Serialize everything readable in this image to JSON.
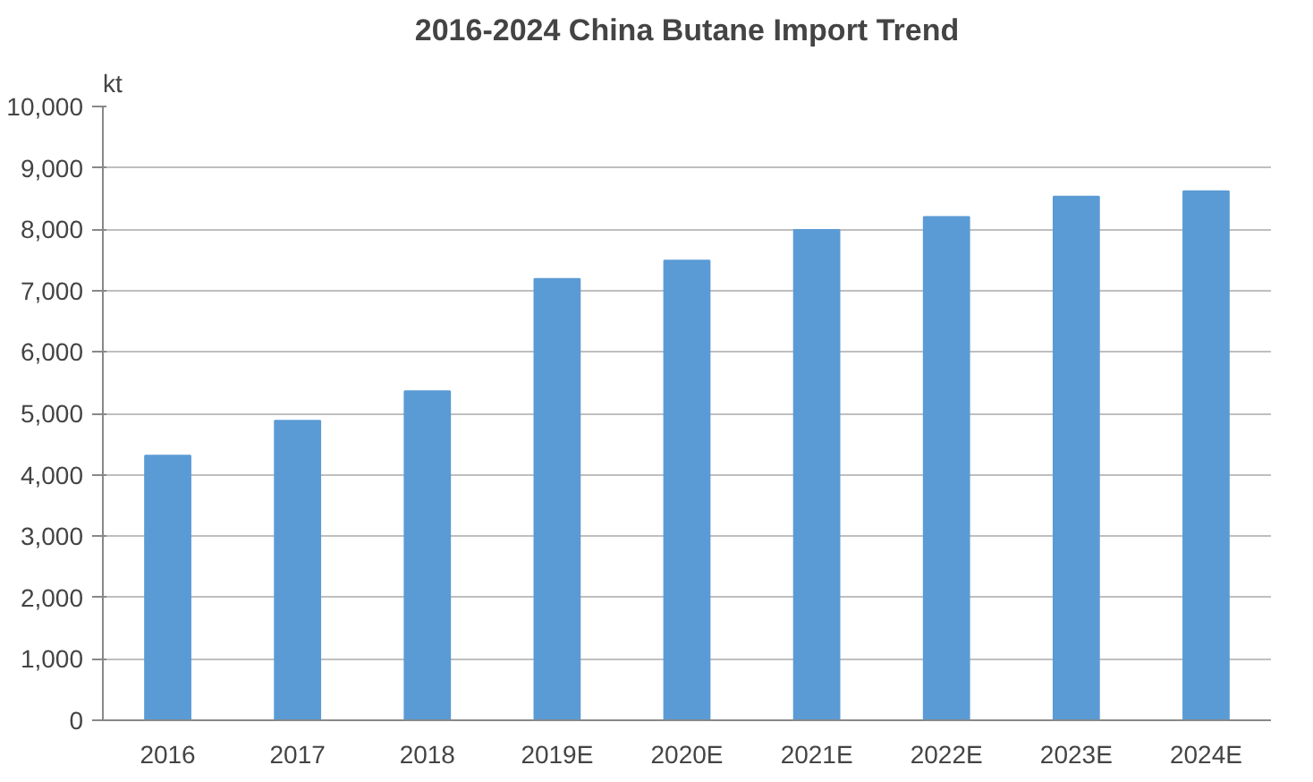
{
  "chart_data": {
    "type": "bar",
    "title": "2016-2024 China Butane Import Trend",
    "ylabel": "kt",
    "categories": [
      "2016",
      "2017",
      "2018",
      "2019E",
      "2020E",
      "2021E",
      "2022E",
      "2023E",
      "2024E"
    ],
    "values": [
      4310,
      4880,
      5360,
      7190,
      7490,
      7990,
      8200,
      8530,
      8620
    ],
    "color": "#5b9bd5",
    "ylim": [
      0,
      10000
    ],
    "yticks": [
      {
        "value": 0,
        "label": "0"
      },
      {
        "value": 1000,
        "label": "1,000"
      },
      {
        "value": 2000,
        "label": "2,000"
      },
      {
        "value": 3000,
        "label": "3,000"
      },
      {
        "value": 4000,
        "label": "4,000"
      },
      {
        "value": 5000,
        "label": "5,000"
      },
      {
        "value": 6000,
        "label": "6,000"
      },
      {
        "value": 7000,
        "label": "7,000"
      },
      {
        "value": 8000,
        "label": "8,000"
      },
      {
        "value": 9000,
        "label": "9,000"
      },
      {
        "value": 10000,
        "label": "10,000"
      }
    ],
    "grid": "y"
  }
}
